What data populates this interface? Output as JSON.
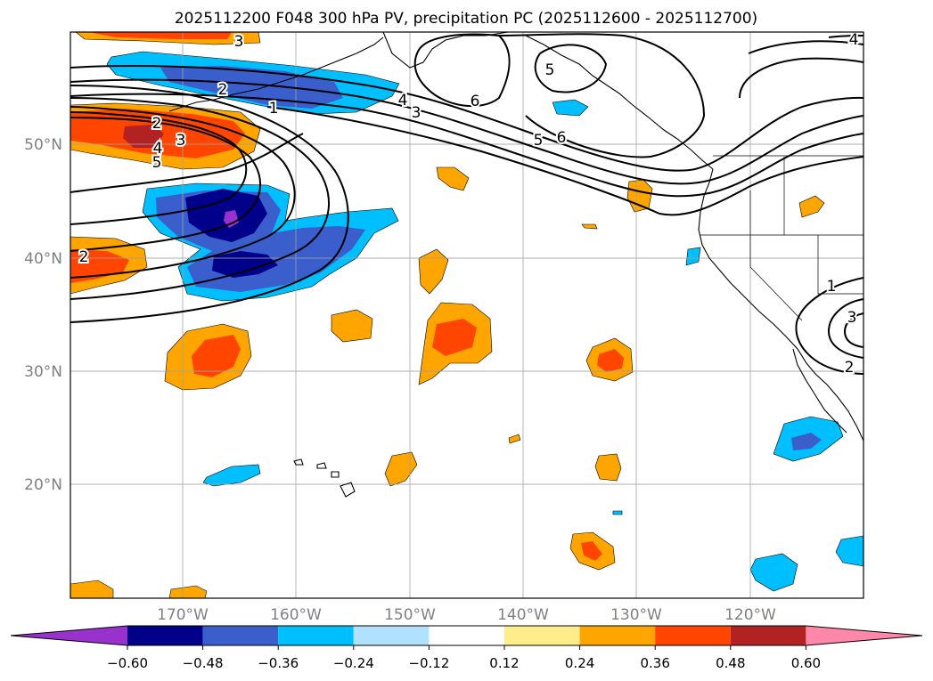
{
  "title": "2025112200 F048 300 hPa PV, precipitation PC (2025112600 - 2025112700)",
  "lat_labels": [
    "50°N",
    "40°N",
    "30°N",
    "20°N"
  ],
  "lon_labels": [
    "170°W",
    "160°W",
    "150°W",
    "140°W",
    "130°W",
    "120°W"
  ],
  "colorbar": {
    "tick_labels": [
      "−0.60",
      "−0.48",
      "−0.36",
      "−0.24",
      "−0.12",
      "0.12",
      "0.24",
      "0.36",
      "0.48",
      "0.60"
    ],
    "colors": [
      "#9932cc",
      "#00008b",
      "#3a5fcd",
      "#00bfff",
      "#b0e2ff",
      "#ffffff",
      "#ffec8b",
      "#ffa500",
      "#ff4500",
      "#b22222",
      "#ff88aa"
    ]
  },
  "contour_labels": [
    "3",
    "2",
    "1",
    "4",
    "3",
    "2",
    "3",
    "4",
    "5",
    "5",
    "6",
    "5",
    "6",
    "2",
    "4",
    "1",
    "3",
    "2"
  ]
}
